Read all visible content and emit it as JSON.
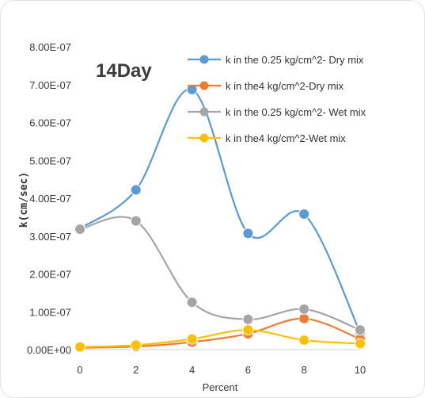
{
  "chart_data": {
    "type": "line",
    "title": "14Day",
    "xlabel": "Percent",
    "ylabel": "k(cm/sec)",
    "x": [
      0,
      2,
      4,
      6,
      8,
      10
    ],
    "xlim": [
      0,
      10
    ],
    "ylim": [
      0,
      8e-07
    ],
    "x_ticks": [
      "0",
      "2",
      "4",
      "6",
      "8",
      "10"
    ],
    "y_ticks": [
      "0.00E+00",
      "1.00E-07",
      "2.00E-07",
      "3.00E-07",
      "4.00E-07",
      "5.00E-07",
      "6.00E-07",
      "7.00E-07",
      "8.00E-07"
    ],
    "grid": false,
    "legend_position": "top-right",
    "smooth": true,
    "series": [
      {
        "name": "k in the 0.25 kg/cm^2- Dry mix",
        "color": "#5b9bd5",
        "values": [
          3.2e-07,
          4.22e-07,
          6.87e-07,
          3.07e-07,
          3.58e-07,
          4.5e-08
        ]
      },
      {
        "name": "k in the4 kg/cm^2-Dry mix",
        "color": "#ed7d31",
        "values": [
          5e-09,
          8e-09,
          2e-08,
          4.2e-08,
          8.2e-08,
          2.8e-08
        ]
      },
      {
        "name": "k in the 0.25 kg/cm^2- Wet mix",
        "color": "#a5a5a5",
        "values": [
          3.18e-07,
          3.4e-07,
          1.25e-07,
          8e-08,
          1.07e-07,
          5.2e-08
        ]
      },
      {
        "name": "k in the4 kg/cm^2-Wet mix",
        "color": "#ffc000",
        "values": [
          7e-09,
          1.2e-08,
          2.8e-08,
          5.2e-08,
          2.5e-08,
          1.6e-08
        ]
      }
    ]
  }
}
